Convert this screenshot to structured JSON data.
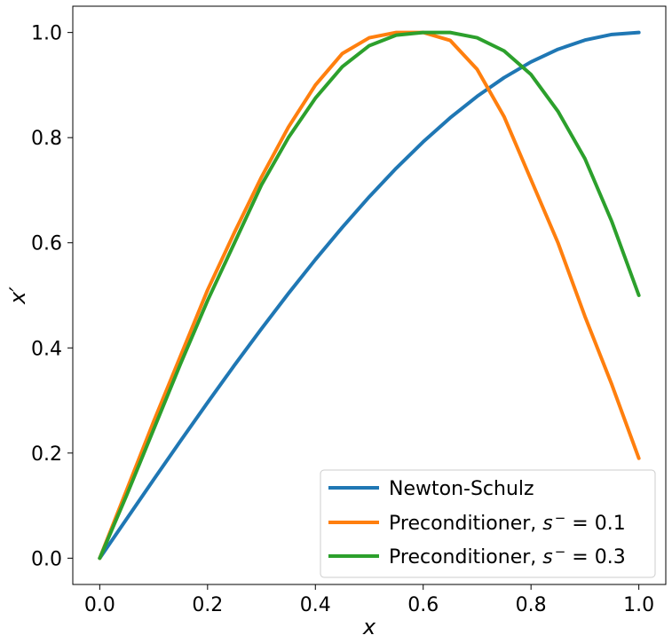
{
  "chart_data": {
    "type": "line",
    "xlabel": "x",
    "ylabel": "x′",
    "xlim": [
      -0.05,
      1.05
    ],
    "ylim": [
      -0.05,
      1.05
    ],
    "xticks": [
      0.0,
      0.2,
      0.4,
      0.6,
      0.8,
      1.0
    ],
    "yticks": [
      0.0,
      0.2,
      0.4,
      0.6,
      0.8,
      1.0
    ],
    "xtick_labels": [
      "0.0",
      "0.2",
      "0.4",
      "0.6",
      "0.8",
      "1.0"
    ],
    "ytick_labels": [
      "0.0",
      "0.2",
      "0.4",
      "0.6",
      "0.8",
      "1.0"
    ],
    "grid": false,
    "legend_position": "bottom-right",
    "x": [
      0.0,
      0.05,
      0.1,
      0.15,
      0.2,
      0.25,
      0.3,
      0.35,
      0.4,
      0.45,
      0.5,
      0.55,
      0.6,
      0.65,
      0.7,
      0.75,
      0.8,
      0.85,
      0.9,
      0.95,
      1.0
    ],
    "series": [
      {
        "name": "Newton-Schulz",
        "color": "#1f77b4",
        "values": [
          0.0,
          0.0749,
          0.1495,
          0.2233,
          0.296,
          0.3672,
          0.4365,
          0.5036,
          0.568,
          0.6294,
          0.6875,
          0.7418,
          0.792,
          0.8377,
          0.8785,
          0.9141,
          0.944,
          0.968,
          0.9855,
          0.9963,
          1.0
        ]
      },
      {
        "name_prefix": "Preconditioner, ",
        "name_var": "s",
        "name_sub": "−",
        "name_suffix": " = 0.1",
        "color": "#ff7f0e",
        "values": [
          0.0,
          0.13,
          0.26,
          0.385,
          0.51,
          0.62,
          0.725,
          0.82,
          0.9,
          0.96,
          0.99,
          1.0,
          1.0,
          0.985,
          0.93,
          0.84,
          0.72,
          0.6,
          0.46,
          0.33,
          0.19
        ]
      },
      {
        "name_prefix": "Preconditioner, ",
        "name_var": "s",
        "name_sub": "−",
        "name_suffix": " = 0.3",
        "color": "#2ca02c",
        "values": [
          0.0,
          0.12,
          0.245,
          0.37,
          0.49,
          0.6,
          0.71,
          0.8,
          0.875,
          0.935,
          0.975,
          0.995,
          1.0,
          1.0,
          0.99,
          0.965,
          0.92,
          0.85,
          0.76,
          0.64,
          0.5
        ]
      }
    ]
  }
}
